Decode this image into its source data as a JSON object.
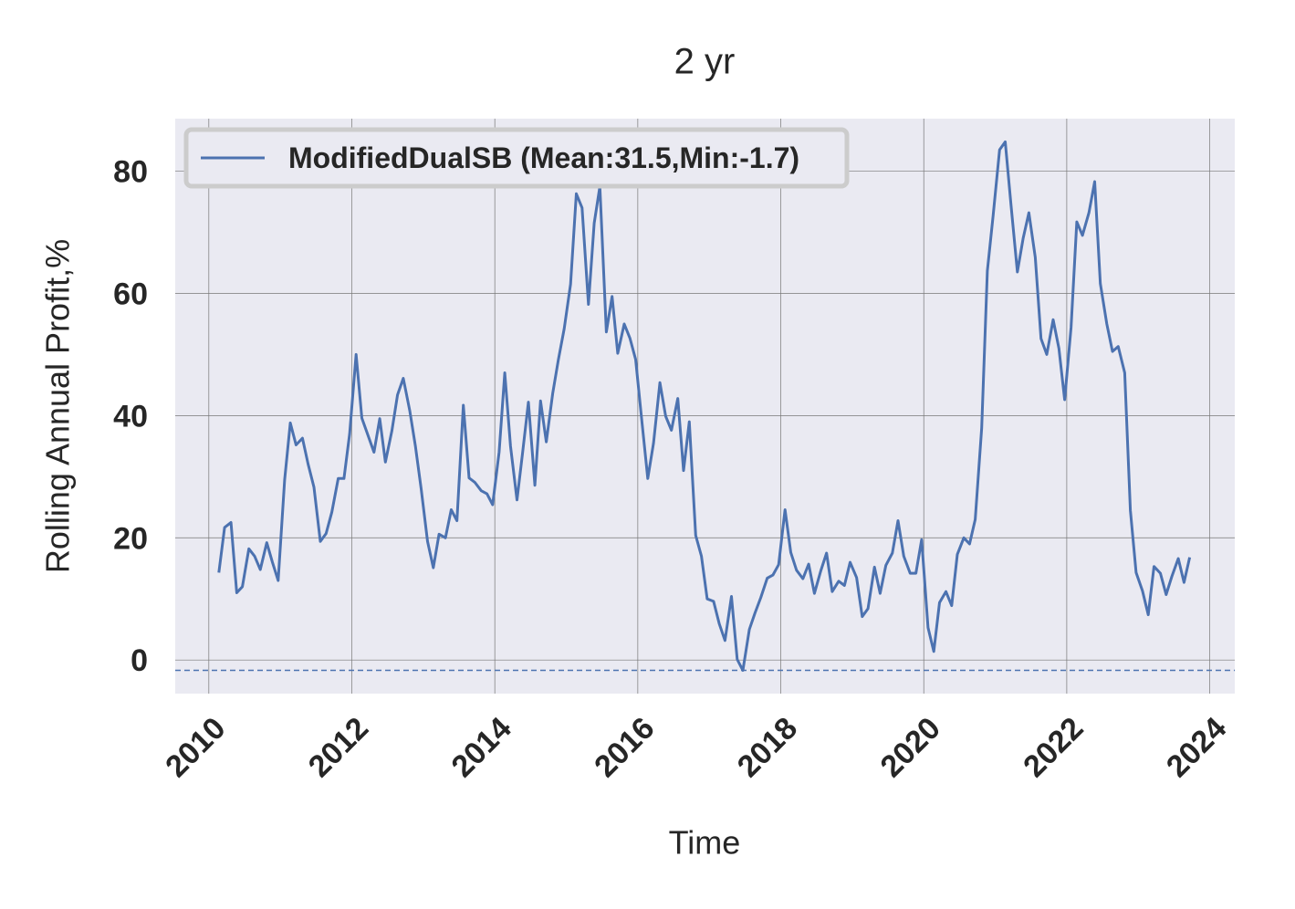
{
  "chart_data": {
    "type": "line",
    "title": "2 yr",
    "xlabel": "Time",
    "ylabel": "Rolling Annual Profit,%",
    "xlim": [
      2009.53,
      2024.35
    ],
    "ylim": [
      -5.5,
      88.6
    ],
    "xticks": [
      2010,
      2012,
      2014,
      2016,
      2018,
      2020,
      2022,
      2024
    ],
    "yticks": [
      0,
      20,
      40,
      60,
      80
    ],
    "grid": true,
    "legend": "upper left",
    "reference_line": -1.7,
    "reference_color": "#4c72b0",
    "x": [
      2010.14,
      2010.22,
      2010.31,
      2010.39,
      2010.47,
      2010.56,
      2010.64,
      2010.72,
      2010.81,
      2010.89,
      2010.97,
      2011.06,
      2011.14,
      2011.22,
      2011.31,
      2011.39,
      2011.47,
      2011.56,
      2011.64,
      2011.72,
      2011.81,
      2011.89,
      2011.97,
      2012.06,
      2012.14,
      2012.22,
      2012.31,
      2012.39,
      2012.47,
      2012.56,
      2012.64,
      2012.72,
      2012.81,
      2012.89,
      2012.97,
      2013.06,
      2013.14,
      2013.22,
      2013.31,
      2013.39,
      2013.47,
      2013.56,
      2013.64,
      2013.72,
      2013.81,
      2013.89,
      2013.97,
      2014.06,
      2014.14,
      2014.22,
      2014.31,
      2014.39,
      2014.47,
      2014.56,
      2014.64,
      2014.72,
      2014.81,
      2014.89,
      2014.97,
      2015.06,
      2015.14,
      2015.22,
      2015.31,
      2015.39,
      2015.47,
      2015.56,
      2015.64,
      2015.72,
      2015.81,
      2015.89,
      2015.97,
      2016.06,
      2016.14,
      2016.22,
      2016.31,
      2016.39,
      2016.47,
      2016.56,
      2016.64,
      2016.72,
      2016.81,
      2016.89,
      2016.97,
      2017.06,
      2017.14,
      2017.22,
      2017.31,
      2017.39,
      2017.47,
      2017.56,
      2017.64,
      2017.72,
      2017.81,
      2017.89,
      2017.97,
      2018.06,
      2018.14,
      2018.22,
      2018.31,
      2018.39,
      2018.47,
      2018.56,
      2018.64,
      2018.72,
      2018.81,
      2018.89,
      2018.97,
      2019.06,
      2019.14,
      2019.22,
      2019.31,
      2019.39,
      2019.47,
      2019.56,
      2019.64,
      2019.72,
      2019.81,
      2019.89,
      2019.97,
      2020.06,
      2020.14,
      2020.22,
      2020.31,
      2020.39,
      2020.47,
      2020.56,
      2020.64,
      2020.72,
      2020.81,
      2020.89,
      2020.97,
      2021.06,
      2021.14,
      2021.22,
      2021.31,
      2021.39,
      2021.47,
      2021.56,
      2021.64,
      2021.72,
      2021.81,
      2021.89,
      2021.97,
      2022.06,
      2022.14,
      2022.22,
      2022.31,
      2022.39,
      2022.47,
      2022.56,
      2022.64,
      2022.72,
      2022.81,
      2022.89,
      2022.97,
      2023.06,
      2023.14,
      2023.22,
      2023.31,
      2023.39,
      2023.47,
      2023.56,
      2023.64,
      2023.72
    ],
    "series": [
      {
        "name": "ModifiedDualSB (Mean:31.5,Min:-1.7)",
        "color": "#4c72b0",
        "values": [
          14.3,
          21.7,
          22.5,
          11,
          12,
          18.2,
          17,
          14.8,
          19.2,
          16,
          13,
          29.5,
          38.8,
          35.2,
          36.3,
          32,
          28.3,
          19.4,
          20.7,
          24.2,
          29.7,
          29.7,
          37,
          50,
          39.6,
          37,
          34,
          39.5,
          32.4,
          37.5,
          43.4,
          46.1,
          40.8,
          35,
          28,
          19.4,
          15.1,
          20.6,
          20,
          24.6,
          22.8,
          41.7,
          29.8,
          29.1,
          27.7,
          27.2,
          25.4,
          34,
          47,
          35,
          26.2,
          34,
          42.2,
          28.6,
          42.4,
          35.7,
          43.6,
          49.2,
          54.2,
          61.5,
          76.3,
          74,
          58.2,
          71.5,
          77.5,
          53.7,
          59.5,
          50.2,
          55,
          52.7,
          49.2,
          38.7,
          29.7,
          35.5,
          45.4,
          39.9,
          37.6,
          42.8,
          31,
          39,
          20.4,
          17,
          10,
          9.6,
          5.9,
          3.2,
          10.4,
          0.1,
          -1.7,
          5,
          7.7,
          10.2,
          13.4,
          13.9,
          15.6,
          24.6,
          17.6,
          14.7,
          13.3,
          15.7,
          10.9,
          14.6,
          17.5,
          11.2,
          12.9,
          12.2,
          16,
          13.5,
          7.1,
          8.4,
          15.2,
          10.9,
          15.5,
          17.5,
          22.8,
          17,
          14.2,
          14.2,
          19.7,
          5.3,
          1.4,
          9.4,
          11.2,
          8.9,
          17.3,
          20,
          19,
          23,
          38,
          63.7,
          72.7,
          83.5,
          84.8,
          74.5,
          63.5,
          69,
          73.2,
          65.9,
          52.6,
          50,
          55.7,
          51,
          42.6,
          54.4,
          71.7,
          69.5,
          73.2,
          78.3,
          61.6,
          55,
          50.5,
          51.3,
          47,
          24.5,
          14.3,
          11.3,
          7.4,
          15.3,
          14.2,
          10.7,
          13.7,
          16.6,
          12.7,
          16.8
        ]
      }
    ]
  }
}
